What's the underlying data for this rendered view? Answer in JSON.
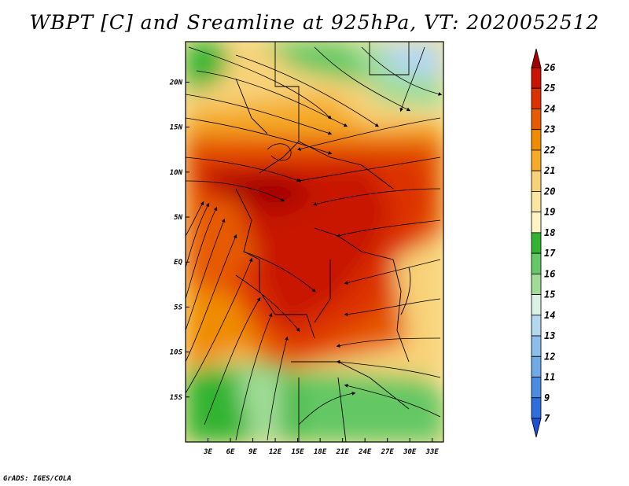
{
  "title": "WBPT [C] and Sreamline at 925hPa, VT: 2020052512",
  "credit": "GrADS: IGES/COLA",
  "map": {
    "lat_labels": [
      "20N",
      "15N",
      "10N",
      "5N",
      "EQ",
      "5S",
      "10S",
      "15S"
    ],
    "lon_labels": [
      "3E",
      "6E",
      "9E",
      "12E",
      "15E",
      "18E",
      "21E",
      "24E",
      "27E",
      "30E",
      "33E"
    ],
    "lat_values": [
      20,
      15,
      10,
      5,
      0,
      -5,
      -10,
      -15
    ],
    "lon_values": [
      3,
      6,
      9,
      12,
      15,
      18,
      21,
      24,
      27,
      30,
      33
    ],
    "lat_range": [
      -20,
      24.5
    ],
    "lon_range": [
      0,
      34.5
    ]
  },
  "colorbar": {
    "labels": [
      "26",
      "25",
      "24",
      "23",
      "22",
      "21",
      "20",
      "19",
      "18",
      "17",
      "16",
      "15",
      "14",
      "13",
      "12",
      "11",
      "9",
      "7"
    ],
    "colors": [
      "#a50000",
      "#c81400",
      "#dc3200",
      "#e65a00",
      "#f08c00",
      "#f5aa28",
      "#f8d278",
      "#fae6a0",
      "#fff5c3",
      "#32b432",
      "#64c864",
      "#a0dc96",
      "#dcf0e6",
      "#b4d7f0",
      "#8cbeeb",
      "#6eaae6",
      "#4b8ce1",
      "#2d6edc",
      "#1e50d2"
    ]
  }
}
